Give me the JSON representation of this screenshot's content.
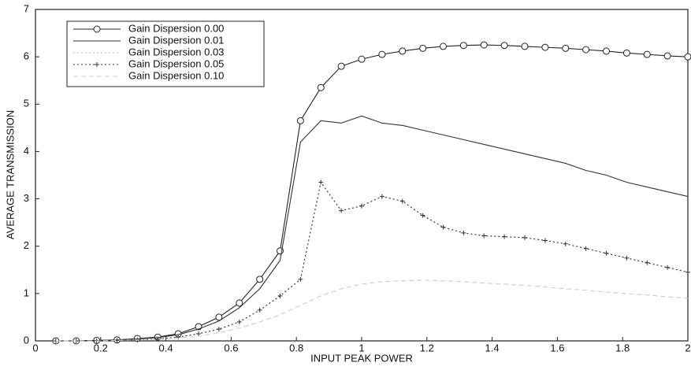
{
  "chart_data": {
    "type": "line",
    "xlabel": "INPUT PEAK POWER",
    "ylabel": "AVERAGE TRANSMISSION",
    "xlim": [
      0,
      2
    ],
    "ylim": [
      0,
      7
    ],
    "xticks": [
      0,
      0.2,
      0.4,
      0.6,
      0.8,
      1,
      1.2,
      1.4,
      1.6,
      1.8,
      2
    ],
    "yticks": [
      0,
      1,
      2,
      3,
      4,
      5,
      6,
      7
    ],
    "legend": "upper-left",
    "x": [
      0.0625,
      0.125,
      0.1875,
      0.25,
      0.3125,
      0.375,
      0.4375,
      0.5,
      0.5625,
      0.625,
      0.6875,
      0.75,
      0.8125,
      0.875,
      0.9375,
      1.0,
      1.0625,
      1.125,
      1.1875,
      1.25,
      1.3125,
      1.375,
      1.4375,
      1.5,
      1.5625,
      1.625,
      1.6875,
      1.75,
      1.8125,
      1.875,
      1.9375,
      2.0
    ],
    "series": [
      {
        "name": "Gain Dispersion 0.00",
        "color": "#222222",
        "marker": "o",
        "dash": "solid",
        "values": [
          0.0,
          0.0,
          0.01,
          0.02,
          0.05,
          0.08,
          0.15,
          0.3,
          0.5,
          0.8,
          1.3,
          1.9,
          4.65,
          5.35,
          5.8,
          5.95,
          6.05,
          6.12,
          6.18,
          6.22,
          6.24,
          6.25,
          6.24,
          6.22,
          6.2,
          6.18,
          6.15,
          6.12,
          6.08,
          6.05,
          6.02,
          6.0
        ]
      },
      {
        "name": "Gain Dispersion 0.01",
        "color": "#333333",
        "marker": null,
        "dash": "solid",
        "values": [
          0.0,
          0.0,
          0.01,
          0.02,
          0.04,
          0.07,
          0.13,
          0.25,
          0.42,
          0.7,
          1.1,
          1.7,
          4.2,
          4.65,
          4.6,
          4.75,
          4.6,
          4.55,
          4.45,
          4.35,
          4.25,
          4.15,
          4.05,
          3.95,
          3.85,
          3.75,
          3.6,
          3.5,
          3.35,
          3.25,
          3.15,
          3.05
        ]
      },
      {
        "name": "Gain Dispersion 0.03",
        "color": "#bbbbbb",
        "marker": null,
        "dash": "dotted",
        "values": [
          0.0,
          0.0,
          0.0,
          0.01,
          0.02,
          0.04,
          0.08,
          0.15,
          0.25,
          0.4,
          0.65,
          0.95,
          1.3,
          3.35,
          2.75,
          2.85,
          3.05,
          2.95,
          2.65,
          2.4,
          2.28,
          2.22,
          2.2,
          2.18,
          2.12,
          2.05,
          1.95,
          1.85,
          1.75,
          1.65,
          1.55,
          1.45
        ]
      },
      {
        "name": "Gain Dispersion 0.05",
        "color": "#333333",
        "marker": "+",
        "dash": "dotted",
        "values": [
          0.0,
          0.0,
          0.0,
          0.01,
          0.02,
          0.04,
          0.08,
          0.15,
          0.25,
          0.4,
          0.65,
          0.95,
          1.3,
          3.35,
          2.75,
          2.85,
          3.05,
          2.95,
          2.65,
          2.4,
          2.28,
          2.22,
          2.2,
          2.18,
          2.12,
          2.05,
          1.95,
          1.85,
          1.75,
          1.65,
          1.55,
          1.45
        ]
      },
      {
        "name": "Gain Dispersion 0.10",
        "color": "#cccccc",
        "marker": null,
        "dash": "dashed",
        "values": [
          0.0,
          0.0,
          0.0,
          0.01,
          0.02,
          0.03,
          0.06,
          0.1,
          0.17,
          0.27,
          0.4,
          0.55,
          0.75,
          0.95,
          1.1,
          1.2,
          1.25,
          1.27,
          1.28,
          1.27,
          1.25,
          1.22,
          1.2,
          1.17,
          1.14,
          1.1,
          1.07,
          1.03,
          1.0,
          0.97,
          0.93,
          0.9
        ]
      }
    ]
  }
}
